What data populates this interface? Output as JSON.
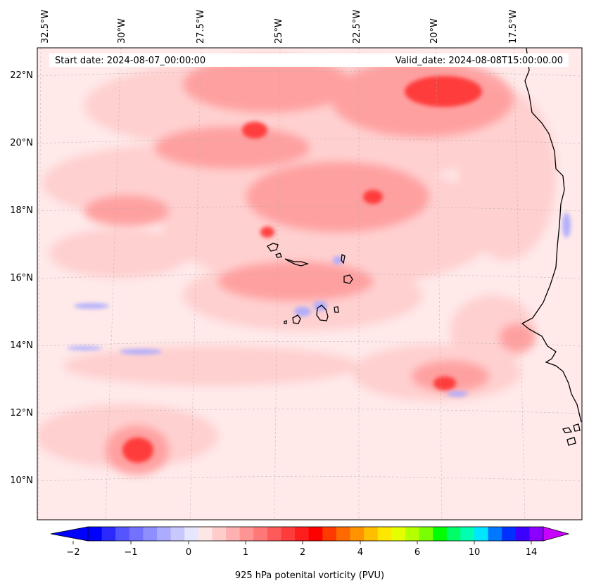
{
  "map": {
    "start_date": "Start date: 2024-08-07_00:00:00",
    "valid_date": "Valid_date: 2024-08-08T15:00:00.00",
    "lon_labels": [
      "32.5°W",
      "30°W",
      "27.5°W",
      "25°W",
      "22.5°W",
      "20°W",
      "17.5°W"
    ],
    "lat_labels": [
      "22°N",
      "20°N",
      "18°N",
      "16°N",
      "14°N",
      "12°N",
      "10°N"
    ],
    "gridlines": true,
    "coastline_color": "#000000"
  },
  "colorbar": {
    "label": "925 hPa potenital vorticity (PVU)",
    "ticks": [
      "−2",
      "−1",
      "0",
      "1",
      "2",
      "4",
      "6",
      "10",
      "14"
    ],
    "extend": "both",
    "colors": [
      "#0000ff",
      "#2a2aff",
      "#5555ff",
      "#7272ff",
      "#8e8eff",
      "#ababff",
      "#c8c8ff",
      "#e6e6ff",
      "#ffe6e6",
      "#ffcccc",
      "#ffb0b0",
      "#ff9494",
      "#ff7878",
      "#ff5a5a",
      "#ff3c3c",
      "#ff1e1e",
      "#ff0000",
      "#ff3a00",
      "#ff6a00",
      "#ff9400",
      "#ffbe00",
      "#ffe600",
      "#e6ff00",
      "#b4ff00",
      "#7aff00",
      "#00ff00",
      "#00ff66",
      "#00ffb0",
      "#00e6ff",
      "#0078ff",
      "#0030ff",
      "#3c00ff",
      "#8c00ff"
    ],
    "under_color": "#0000ff",
    "over_color": "#c800ff"
  }
}
